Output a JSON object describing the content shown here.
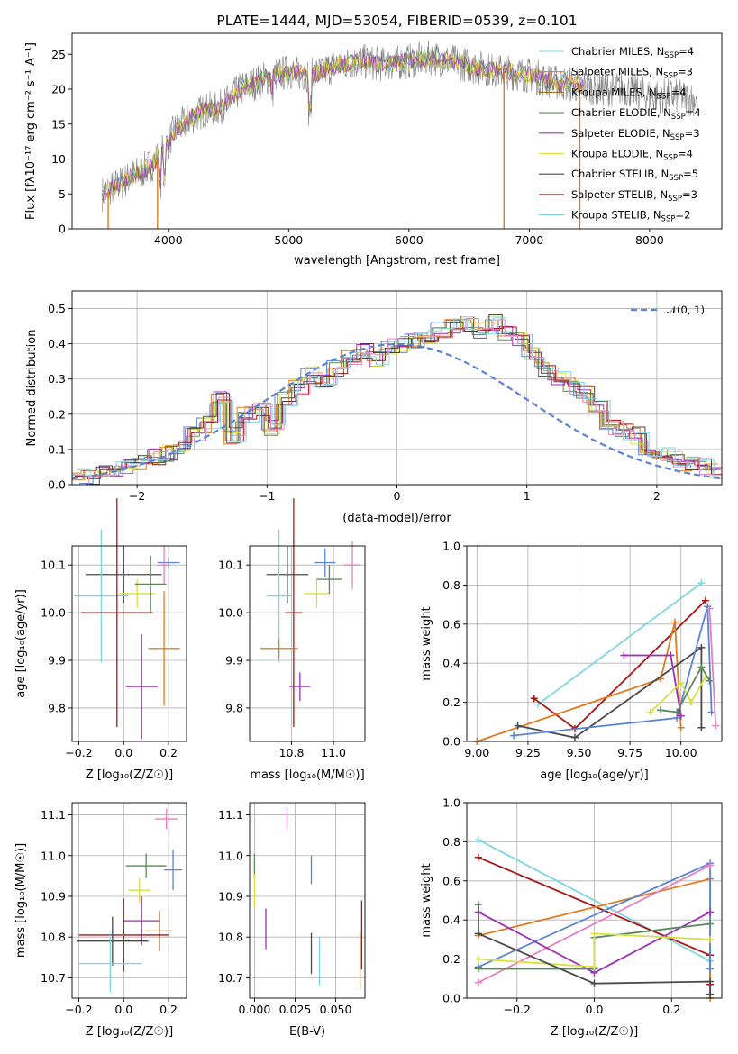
{
  "colors": {
    "blue": "#5b84d4",
    "orange": "#e07b1f",
    "green": "#5a8a5a",
    "purple": "#9d2fb4",
    "yellow": "#d8e040",
    "gray": "#4a4a4a",
    "red": "#a81616",
    "pink": "#e680c0",
    "cyan": "#7fd6e0"
  },
  "chart_data": [
    {
      "id": "spectrum",
      "type": "line",
      "title": "PLATE=1444, MJD=53054, FIBERID=0539, z=0.101",
      "xlabel": "wavelength [Angstrom, rest frame]",
      "ylabel": "Flux [fλ10⁻¹⁷ erg cm⁻² s⁻¹ A⁻¹]",
      "xlim": [
        3200,
        8600
      ],
      "ylim": [
        0,
        28
      ],
      "xticks": [
        4000,
        5000,
        6000,
        7000,
        8000
      ],
      "yticks": [
        0,
        5,
        10,
        15,
        20,
        25
      ],
      "legend_position": "upper-right",
      "legend": [
        {
          "label": "Chabrier MILES, N",
          "sub": "SSP",
          "tail": "=4",
          "color": "#7fd6e0"
        },
        {
          "label": "Salpeter MILES, N",
          "sub": "SSP",
          "tail": "=3",
          "color": "#e07b1f"
        },
        {
          "label": "Kroupa MILES, N",
          "sub": "SSP",
          "tail": "=4",
          "color": "#a07020"
        },
        {
          "label": "Chabrier ELODIE, N",
          "sub": "SSP",
          "tail": "=4",
          "color": "#5a8a5a"
        },
        {
          "label": "Salpeter ELODIE, N",
          "sub": "SSP",
          "tail": "=3",
          "color": "#9d2fb4"
        },
        {
          "label": "Kroupa ELODIE, N",
          "sub": "SSP",
          "tail": "=4",
          "color": "#d8e040"
        },
        {
          "label": "Chabrier STELIB, N",
          "sub": "SSP",
          "tail": "=5",
          "color": "#4a4a4a"
        },
        {
          "label": "Salpeter STELIB, N",
          "sub": "SSP",
          "tail": "=3",
          "color": "#a81616"
        },
        {
          "label": "Kroupa STELIB, N",
          "sub": "SSP",
          "tail": "=2",
          "color": "#7fd6e0"
        }
      ],
      "continuum": [
        [
          3450,
          5
        ],
        [
          3550,
          6
        ],
        [
          3700,
          7.5
        ],
        [
          3850,
          9
        ],
        [
          3950,
          11
        ],
        [
          4050,
          14
        ],
        [
          4200,
          16
        ],
        [
          4300,
          17
        ],
        [
          4450,
          17.5
        ],
        [
          4600,
          20
        ],
        [
          4800,
          21.5
        ],
        [
          5000,
          22.5
        ],
        [
          5200,
          22
        ],
        [
          5400,
          23.5
        ],
        [
          5600,
          24
        ],
        [
          5800,
          23.5
        ],
        [
          6000,
          24
        ],
        [
          6200,
          24.5
        ],
        [
          6400,
          23.8
        ],
        [
          6600,
          23
        ],
        [
          6800,
          22.5
        ],
        [
          7000,
          22
        ],
        [
          7200,
          21
        ],
        [
          7400,
          20.5
        ],
        [
          7600,
          20
        ],
        [
          7800,
          20
        ],
        [
          8000,
          19
        ],
        [
          8200,
          19
        ],
        [
          8400,
          18.5
        ]
      ],
      "drops": [
        {
          "x": 3500,
          "y": 0
        },
        {
          "x": 3910,
          "y": 0
        },
        {
          "x": 6790,
          "y": 0
        },
        {
          "x": 7420,
          "y": 0
        }
      ]
    },
    {
      "id": "residuals",
      "type": "bar",
      "xlabel": "(data-model)/error",
      "ylabel": "Normed distribution",
      "xlim": [
        -2.5,
        2.5
      ],
      "ylim": [
        0,
        0.55
      ],
      "xticks": [
        -2,
        -1,
        0,
        1,
        2
      ],
      "yticks": [
        0.0,
        0.1,
        0.2,
        0.3,
        0.4,
        0.5
      ],
      "legend": [
        {
          "label": "𝒩(0, 1)",
          "color": "#5b84d4"
        }
      ],
      "hist_edges_start": -2.5,
      "bin_width": 0.1,
      "hist_base": [
        0.02,
        0.025,
        0.03,
        0.04,
        0.05,
        0.06,
        0.08,
        0.09,
        0.11,
        0.14,
        0.17,
        0.25,
        0.14,
        0.2,
        0.21,
        0.16,
        0.24,
        0.28,
        0.31,
        0.3,
        0.33,
        0.36,
        0.38,
        0.36,
        0.39,
        0.4,
        0.41,
        0.42,
        0.44,
        0.45,
        0.46,
        0.44,
        0.46,
        0.43,
        0.41,
        0.38,
        0.33,
        0.3,
        0.28,
        0.26,
        0.22,
        0.16,
        0.15,
        0.14,
        0.1,
        0.09,
        0.07,
        0.06,
        0.05,
        0.04
      ]
    },
    {
      "id": "age_vs_Z",
      "type": "scatter",
      "xlabel": "Z [log₁₀(Z/Z☉)]",
      "ylabel": "age  [log₁₀(age/yr)]",
      "xlim": [
        -0.23,
        0.28
      ],
      "ylim": [
        9.73,
        10.14
      ],
      "xticks": [
        -0.2,
        0.0,
        0.2
      ],
      "xticklabels": [
        "−0.2",
        "0.0",
        "0.2"
      ],
      "yticks": [
        9.8,
        9.9,
        10.0,
        10.1
      ],
      "yticklabels": [
        "9.8",
        "9.9",
        "10.0",
        "10.1"
      ],
      "points": [
        {
          "x": 0.0,
          "y": 10.08,
          "xerr": 0.17,
          "yerr": 0.06,
          "color": "#4a4a4a"
        },
        {
          "x": -0.1,
          "y": 10.035,
          "xerr": 0.12,
          "yerr": 0.14,
          "color": "#7fd6e0"
        },
        {
          "x": 0.06,
          "y": 10.04,
          "xerr": 0.08,
          "yerr": 0.03,
          "color": "#d8e040"
        },
        {
          "x": 0.12,
          "y": 10.06,
          "xerr": 0.07,
          "yerr": 0.06,
          "color": "#5a8a5a"
        },
        {
          "x": 0.2,
          "y": 10.105,
          "xerr": 0.05,
          "yerr": 0.01,
          "color": "#5b84d4"
        },
        {
          "x": 0.18,
          "y": 10.1,
          "xerr": 0.03,
          "yerr": 0.04,
          "color": "#e680c0"
        },
        {
          "x": -0.03,
          "y": 10.0,
          "xerr": 0.16,
          "yerr": 0.24,
          "color": "#a81616"
        },
        {
          "x": 0.18,
          "y": 9.925,
          "xerr": 0.07,
          "yerr": 0.12,
          "color": "#e07b1f"
        },
        {
          "x": 0.08,
          "y": 9.845,
          "xerr": 0.07,
          "yerr": 0.11,
          "color": "#9d2fb4"
        }
      ]
    },
    {
      "id": "age_vs_mass",
      "type": "scatter",
      "xlabel": "mass [log₁₀(M/M☉)]",
      "ylabel": "",
      "xlim": [
        10.6,
        11.15
      ],
      "ylim": [
        9.73,
        10.14
      ],
      "xticks": [
        10.8,
        11.0
      ],
      "xticklabels": [
        "10.8",
        "11.0"
      ],
      "yticks": [
        9.8,
        9.9,
        10.0,
        10.1
      ],
      "yticklabels": [
        "9.8",
        "9.9",
        "10.0",
        "10.1"
      ],
      "points": [
        {
          "x": 10.78,
          "y": 10.08,
          "xerr": 0.1,
          "yerr": 0.06,
          "color": "#4a4a4a"
        },
        {
          "x": 10.74,
          "y": 10.035,
          "xerr": 0.06,
          "yerr": 0.14,
          "color": "#7fd6e0"
        },
        {
          "x": 10.92,
          "y": 10.04,
          "xerr": 0.06,
          "yerr": 0.03,
          "color": "#d8e040"
        },
        {
          "x": 10.98,
          "y": 10.07,
          "xerr": 0.06,
          "yerr": 0.03,
          "color": "#5a8a5a"
        },
        {
          "x": 10.96,
          "y": 10.105,
          "xerr": 0.05,
          "yerr": 0.03,
          "color": "#5b84d4"
        },
        {
          "x": 11.09,
          "y": 10.1,
          "xerr": 0.04,
          "yerr": 0.05,
          "color": "#e680c0"
        },
        {
          "x": 10.81,
          "y": 10.0,
          "xerr": 0.04,
          "yerr": 0.24,
          "color": "#a81616"
        },
        {
          "x": 10.74,
          "y": 9.925,
          "xerr": 0.09,
          "yerr": 0.02,
          "color": "#e07b1f"
        },
        {
          "x": 10.84,
          "y": 9.845,
          "xerr": 0.05,
          "yerr": 0.03,
          "color": "#9d2fb4"
        }
      ]
    },
    {
      "id": "mass_weight_vs_age",
      "type": "line",
      "xlabel": "age  [log₁₀(age/yr)]",
      "ylabel": "mass weight",
      "xlim": [
        8.95,
        10.2
      ],
      "ylim": [
        0,
        1.0
      ],
      "xticks": [
        9.0,
        9.25,
        9.5,
        9.75,
        10.0
      ],
      "xticklabels": [
        "9.00",
        "9.25",
        "9.50",
        "9.75",
        "10.00"
      ],
      "yticks": [
        0.0,
        0.2,
        0.4,
        0.6,
        0.8,
        1.0
      ],
      "yticklabels": [
        "0.0",
        "0.2",
        "0.4",
        "0.6",
        "0.8",
        "1.0"
      ],
      "series": [
        {
          "color": "#7fd6e0",
          "points": [
            [
              9.3,
              0.19
            ],
            [
              10.1,
              0.81
            ]
          ]
        },
        {
          "color": "#a81616",
          "points": [
            [
              9.28,
              0.22
            ],
            [
              9.48,
              0.065
            ],
            [
              10.12,
              0.72
            ]
          ]
        },
        {
          "color": "#e07b1f",
          "points": [
            [
              9.0,
              0.0
            ],
            [
              9.9,
              0.32
            ],
            [
              9.97,
              0.61
            ],
            [
              10.0,
              0.07
            ]
          ]
        },
        {
          "color": "#4a4a4a",
          "points": [
            [
              9.2,
              0.08
            ],
            [
              9.48,
              0.02
            ],
            [
              10.1,
              0.48
            ],
            [
              10.1,
              0.07
            ]
          ]
        },
        {
          "color": "#5b84d4",
          "points": [
            [
              9.18,
              0.03
            ],
            [
              9.98,
              0.12
            ],
            [
              10.13,
              0.69
            ],
            [
              10.15,
              0.15
            ]
          ]
        },
        {
          "color": "#9d2fb4",
          "points": [
            [
              9.72,
              0.44
            ],
            [
              9.95,
              0.44
            ],
            [
              10.0,
              0.13
            ]
          ]
        },
        {
          "color": "#d8e040",
          "points": [
            [
              9.85,
              0.15
            ],
            [
              10.0,
              0.3
            ],
            [
              10.05,
              0.2
            ],
            [
              10.12,
              0.33
            ]
          ]
        },
        {
          "color": "#5a8a5a",
          "points": [
            [
              9.9,
              0.16
            ],
            [
              9.98,
              0.15
            ],
            [
              10.1,
              0.38
            ],
            [
              10.14,
              0.31
            ]
          ]
        },
        {
          "color": "#e680c0",
          "points": [
            [
              10.14,
              0.68
            ],
            [
              10.17,
              0.08
            ]
          ]
        }
      ]
    },
    {
      "id": "mass_vs_Z",
      "type": "scatter",
      "xlabel": "Z [log₁₀(Z/Z☉)]",
      "ylabel": "mass [log₁₀(M/M☉)]",
      "xlim": [
        -0.23,
        0.28
      ],
      "ylim": [
        10.65,
        11.13
      ],
      "xticks": [
        -0.2,
        0.0,
        0.2
      ],
      "xticklabels": [
        "−0.2",
        "0.0",
        "0.2"
      ],
      "yticks": [
        10.7,
        10.8,
        10.9,
        11.0,
        11.1
      ],
      "yticklabels": [
        "10.7",
        "10.8",
        "10.9",
        "11.0",
        "11.1"
      ],
      "points": [
        {
          "x": 0.19,
          "y": 11.09,
          "xerr": 0.05,
          "yerr": 0.025,
          "color": "#e680c0"
        },
        {
          "x": 0.1,
          "y": 10.975,
          "xerr": 0.09,
          "yerr": 0.03,
          "color": "#5a8a5a"
        },
        {
          "x": 0.22,
          "y": 10.965,
          "xerr": 0.04,
          "yerr": 0.05,
          "color": "#5b84d4"
        },
        {
          "x": 0.07,
          "y": 10.915,
          "xerr": 0.05,
          "yerr": 0.03,
          "color": "#d8e040"
        },
        {
          "x": 0.08,
          "y": 10.84,
          "xerr": 0.08,
          "yerr": 0.06,
          "color": "#9d2fb4"
        },
        {
          "x": 0.16,
          "y": 10.815,
          "xerr": 0.06,
          "yerr": 0.05,
          "color": "#e07b1f"
        },
        {
          "x": 0.0,
          "y": 10.805,
          "xerr": 0.2,
          "yerr": 0.09,
          "color": "#a81616"
        },
        {
          "x": -0.05,
          "y": 10.79,
          "xerr": 0.16,
          "yerr": 0.06,
          "color": "#4a4a4a"
        },
        {
          "x": -0.06,
          "y": 10.735,
          "xerr": 0.14,
          "yerr": 0.07,
          "color": "#7fd6e0"
        }
      ]
    },
    {
      "id": "mass_vs_ebv",
      "type": "scatter",
      "xlabel": "E(B-V)",
      "ylabel": "",
      "xlim": [
        -0.003,
        0.068
      ],
      "ylim": [
        10.65,
        11.13
      ],
      "xticks": [
        0.0,
        0.025,
        0.05
      ],
      "xticklabels": [
        "0.000",
        "0.025",
        "0.050"
      ],
      "yticks": [
        10.7,
        10.8,
        10.9,
        11.0,
        11.1
      ],
      "yticklabels": [
        "10.7",
        "10.8",
        "10.9",
        "11.0",
        "11.1"
      ],
      "points": [
        {
          "x": 0.02,
          "y": 11.09,
          "xerr": 0,
          "yerr": 0.025,
          "color": "#e680c0"
        },
        {
          "x": 0.0,
          "y": 10.975,
          "xerr": 0,
          "yerr": 0.03,
          "color": "#5a8a5a"
        },
        {
          "x": 0.035,
          "y": 10.965,
          "xerr": 0,
          "yerr": 0.035,
          "color": "#5b84d4"
        },
        {
          "x": 0.0,
          "y": 10.915,
          "xerr": 0,
          "yerr": 0.04,
          "color": "#d8e040"
        },
        {
          "x": 0.007,
          "y": 10.82,
          "xerr": 0,
          "yerr": 0.05,
          "color": "#9d2fb4"
        },
        {
          "x": 0.065,
          "y": 10.74,
          "xerr": 0,
          "yerr": 0.07,
          "color": "#e07b1f"
        },
        {
          "x": 0.066,
          "y": 10.805,
          "xerr": 0,
          "yerr": 0.085,
          "color": "#a81616"
        },
        {
          "x": 0.035,
          "y": 10.76,
          "xerr": 0,
          "yerr": 0.05,
          "color": "#4a4a4a"
        },
        {
          "x": 0.04,
          "y": 10.74,
          "xerr": 0,
          "yerr": 0.06,
          "color": "#7fd6e0"
        }
      ]
    },
    {
      "id": "mass_weight_vs_Z",
      "type": "line",
      "xlabel": "Z [log₁₀(Z/Z☉)]",
      "ylabel": "mass weight",
      "xlim": [
        -0.33,
        0.33
      ],
      "ylim": [
        0,
        1.0
      ],
      "xticks": [
        -0.2,
        0.0,
        0.2
      ],
      "xticklabels": [
        "−0.2",
        "0.0",
        "0.2"
      ],
      "yticks": [
        0.0,
        0.2,
        0.4,
        0.6,
        0.8,
        1.0
      ],
      "yticklabels": [
        "0.0",
        "0.2",
        "0.4",
        "0.6",
        "0.8",
        "1.0"
      ],
      "series": [
        {
          "color": "#7fd6e0",
          "points": [
            [
              -0.3,
              0.81
            ],
            [
              0.3,
              0.19
            ]
          ]
        },
        {
          "color": "#a81616",
          "points": [
            [
              -0.3,
              0.72
            ],
            [
              0.3,
              0.22
            ],
            [
              0.3,
              0.07
            ]
          ]
        },
        {
          "color": "#e07b1f",
          "points": [
            [
              -0.3,
              0.32
            ],
            [
              0.3,
              0.61
            ],
            [
              0.3,
              0.0
            ]
          ]
        },
        {
          "color": "#5b84d4",
          "points": [
            [
              -0.3,
              0.16
            ],
            [
              0.3,
              0.69
            ],
            [
              0.3,
              0.15
            ]
          ]
        },
        {
          "color": "#e680c0",
          "points": [
            [
              -0.3,
              0.08
            ],
            [
              0.3,
              0.68
            ]
          ]
        },
        {
          "color": "#9d2fb4",
          "points": [
            [
              -0.3,
              0.44
            ],
            [
              0.0,
              0.13
            ],
            [
              0.3,
              0.44
            ]
          ]
        },
        {
          "color": "#5a8a5a",
          "points": [
            [
              -0.3,
              0.15
            ],
            [
              0.0,
              0.15
            ],
            [
              0.0,
              0.31
            ],
            [
              0.3,
              0.38
            ]
          ]
        },
        {
          "color": "#d8e040",
          "points": [
            [
              -0.3,
              0.2
            ],
            [
              0.0,
              0.16
            ],
            [
              0.0,
              0.33
            ],
            [
              0.3,
              0.3
            ]
          ]
        },
        {
          "color": "#4a4a4a",
          "points": [
            [
              -0.3,
              0.48
            ],
            [
              -0.3,
              0.33
            ],
            [
              0.0,
              0.075
            ],
            [
              0.3,
              0.085
            ],
            [
              0.3,
              0.02
            ]
          ]
        }
      ]
    }
  ]
}
